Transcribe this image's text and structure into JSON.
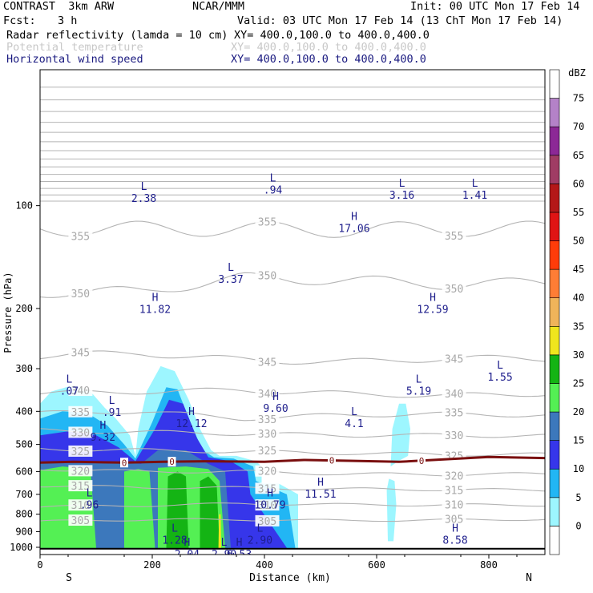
{
  "header": {
    "model": "CONTRAST  3km ARW",
    "center": "NCAR/MMM",
    "init": "Init: 00 UTC Mon 17 Feb 14",
    "fcst_label": "Fcst:",
    "fcst_value": "3 h",
    "valid": "Valid: 03 UTC Mon 17 Feb 14 (13 ChT Mon 17 Feb 14)",
    "field1": "Radar reflectivity (lamda = 10 cm)",
    "field1_xy": "XY= 400.0,100.0 to 400.0,400.0",
    "field2": "Potential temperature",
    "field2_xy": "XY= 400.0,100.0 to 400.0,400.0",
    "field3": "Horizontal wind speed",
    "field3_xy": "XY= 400.0,100.0 to 400.0,400.0"
  },
  "chart_data": {
    "type": "heatmap",
    "title": "",
    "xlabel": "Distance (km)",
    "ylabel": "Pressure (hPa)",
    "xlim": [
      0,
      900
    ],
    "ylim": [
      1050,
      40
    ],
    "y_scale": "log",
    "x_ticks": [
      "0",
      "200",
      "400",
      "600",
      "800"
    ],
    "x_tick_values": [
      0,
      200,
      400,
      600,
      800
    ],
    "y_ticks": [
      "100",
      "200",
      "300",
      "400",
      "500",
      "600",
      "700",
      "800",
      "900",
      "1000"
    ],
    "y_tick_values": [
      100,
      200,
      300,
      400,
      500,
      600,
      700,
      800,
      900,
      1000
    ],
    "x_end_labels": {
      "left": "S",
      "right": "N"
    },
    "colorbar": {
      "unit": "dBZ",
      "levels": [
        0,
        5,
        10,
        15,
        20,
        25,
        30,
        35,
        40,
        45,
        50,
        55,
        60,
        65,
        70,
        75
      ],
      "labels": [
        "0",
        "5",
        "10",
        "15",
        "20",
        "25",
        "30",
        "35",
        "40",
        "45",
        "50",
        "55",
        "60",
        "65",
        "70",
        "75"
      ],
      "colors": [
        "#ffffff",
        "#9df6ff",
        "#22b6f4",
        "#3636ea",
        "#3c78bc",
        "#54f054",
        "#14b414",
        "#f0e61e",
        "#f0b45a",
        "#ff7d35",
        "#ff3c0a",
        "#e01414",
        "#b41818",
        "#a03c64",
        "#8c2896",
        "#b482c8",
        "#ffffff"
      ]
    },
    "theta_contours": [
      {
        "label": "355",
        "p": [
          117,
          117,
          117,
          118,
          117,
          117
        ]
      },
      {
        "label": "350",
        "p": [
          180,
          178,
          163,
          165,
          170,
          168
        ]
      },
      {
        "label": "345",
        "p": [
          275,
          270,
          283,
          287,
          280,
          280
        ]
      },
      {
        "label": "340",
        "p": [
          355,
          350,
          347,
          355,
          360,
          355
        ]
      },
      {
        "label": "335",
        "p": [
          405,
          400,
          420,
          410,
          408,
          410
        ]
      },
      {
        "label": "330",
        "p": [
          455,
          460,
          465,
          470,
          470,
          472
        ]
      },
      {
        "label": "325",
        "p": [
          515,
          520,
          525,
          530,
          535,
          535
        ]
      },
      {
        "label": "320",
        "p": [
          590,
          600,
          600,
          610,
          612,
          610
        ]
      },
      {
        "label": "315",
        "p": [
          660,
          668,
          670,
          675,
          678,
          680
        ]
      },
      {
        "label": "310",
        "p": [
          760,
          755,
          745,
          750,
          752,
          752
        ]
      },
      {
        "label": "305",
        "p": [
          840,
          830,
          830,
          835,
          832,
          828
        ]
      }
    ],
    "theta_x": [
      0,
      180,
      360,
      540,
      720,
      900
    ],
    "zero_line_label": "0",
    "zero_line": {
      "x": [
        0,
        60,
        150,
        220,
        300,
        400,
        470,
        550,
        640,
        720,
        800,
        900
      ],
      "p": [
        565,
        562,
        565,
        562,
        560,
        562,
        555,
        558,
        562,
        553,
        544,
        548
      ]
    },
    "wind_extrema": [
      {
        "type": "L",
        "value": "2.38",
        "x": 185,
        "p": 90
      },
      {
        "type": "L",
        "value": ".94",
        "x": 415,
        "p": 85
      },
      {
        "type": "L",
        "value": "3.16",
        "x": 645,
        "p": 88
      },
      {
        "type": "L",
        "value": "1.41",
        "x": 775,
        "p": 88
      },
      {
        "type": "H",
        "value": "17.06",
        "x": 560,
        "p": 110
      },
      {
        "type": "L",
        "value": "3.37",
        "x": 340,
        "p": 155
      },
      {
        "type": "H",
        "value": "11.82",
        "x": 205,
        "p": 190
      },
      {
        "type": "H",
        "value": "12.59",
        "x": 700,
        "p": 190
      },
      {
        "type": "L",
        "value": "1.55",
        "x": 820,
        "p": 300
      },
      {
        "type": "L",
        "value": ".07",
        "x": 52,
        "p": 330
      },
      {
        "type": "L",
        "value": "5.19",
        "x": 675,
        "p": 330
      },
      {
        "type": "H",
        "value": "9.60",
        "x": 420,
        "p": 370
      },
      {
        "type": "L",
        "value": ".91",
        "x": 128,
        "p": 380
      },
      {
        "type": "H",
        "value": "12.12",
        "x": 270,
        "p": 410
      },
      {
        "type": "L",
        "value": "4.1",
        "x": 560,
        "p": 410
      },
      {
        "type": "H",
        "value": "9.32",
        "x": 112,
        "p": 450
      },
      {
        "type": "H",
        "value": "11.51",
        "x": 500,
        "p": 660
      },
      {
        "type": "L",
        "value": ".96",
        "x": 88,
        "p": 710
      },
      {
        "type": "H",
        "value": "10.79",
        "x": 410,
        "p": 710
      },
      {
        "type": "L",
        "value": "1.28",
        "x": 240,
        "p": 900
      },
      {
        "type": "L",
        "value": "2.90",
        "x": 392,
        "p": 900
      },
      {
        "type": "H",
        "value": "8.58",
        "x": 740,
        "p": 900
      },
      {
        "type": "H",
        "value": "2.04",
        "x": 262,
        "p": 990
      },
      {
        "type": "L",
        "value": "2.90",
        "x": 328,
        "p": 990
      },
      {
        "type": "H",
        "value": "6.53",
        "x": 355,
        "p": 990
      }
    ]
  }
}
